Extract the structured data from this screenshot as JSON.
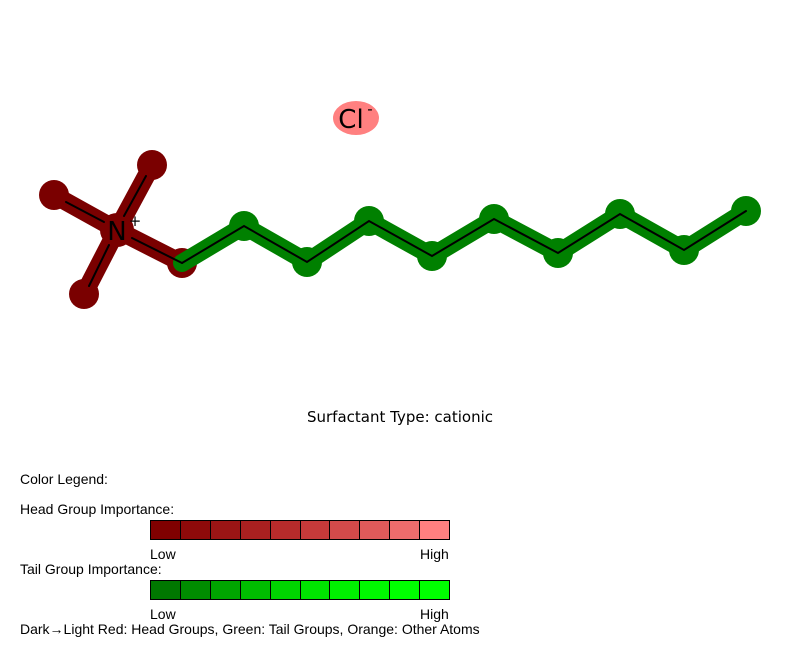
{
  "molecule": {
    "nitrogen_label": "N",
    "nitrogen_charge": "+",
    "counterion_label": "Cl",
    "counterion_charge": "-",
    "colors": {
      "head_atom": "#7a0000",
      "tail_atom": "#008000",
      "counterion": "#ff8080",
      "bond": "#000000"
    }
  },
  "caption": "Surfactant Type: cationic",
  "legend": {
    "title": "Color Legend:",
    "head_label": "Head Group Importance:",
    "tail_label": "Tail Group Importance:",
    "low": "Low",
    "high": "High",
    "head_colors": [
      "#800000",
      "#8e0a0a",
      "#9b1515",
      "#a92020",
      "#b72b2b",
      "#c53a3a",
      "#d34a4a",
      "#e05a5a",
      "#ee6c6c",
      "#ff8080"
    ],
    "tail_colors": [
      "#007800",
      "#008c00",
      "#00a500",
      "#00bd00",
      "#00d400",
      "#00e400",
      "#00f000",
      "#00f800",
      "#00ff00",
      "#00ff00"
    ],
    "footnote": "Dark→Light Red: Head Groups, Green: Tail Groups, Orange: Other Atoms"
  }
}
